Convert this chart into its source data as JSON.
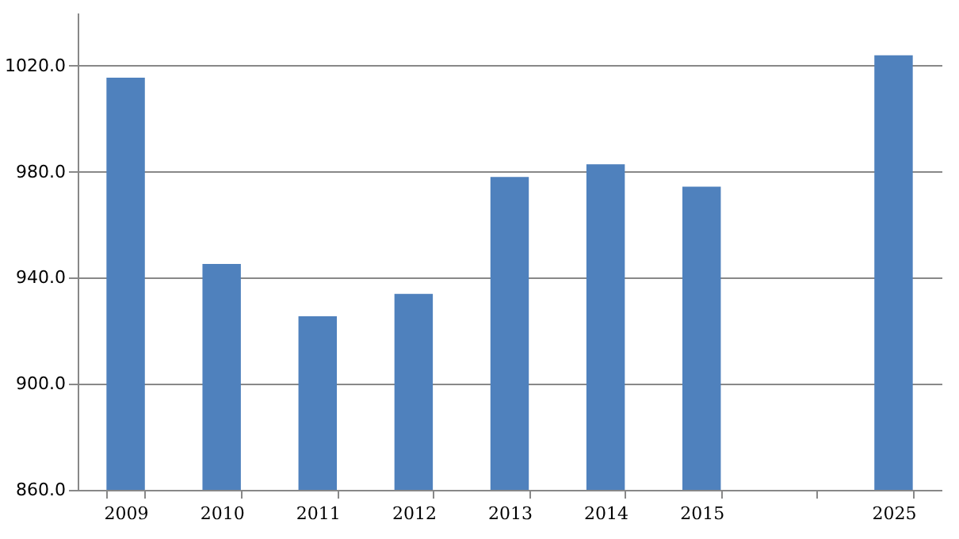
{
  "chart_data": {
    "type": "bar",
    "categories": [
      "2009",
      "2010",
      "2011",
      "2012",
      "2013",
      "2014",
      "2015",
      null,
      "2025"
    ],
    "values": [
      1015.5,
      945.2,
      925.5,
      933.9,
      978,
      982.8,
      974.4,
      null,
      1023.9
    ],
    "color": "#4f81bd",
    "ylim": [
      860,
      1040
    ],
    "yticks": [
      {
        "value": 860,
        "label": "860.0"
      },
      {
        "value": 900,
        "label": "900.0"
      },
      {
        "value": 940,
        "label": "940.0"
      },
      {
        "value": 980,
        "label": "980.0"
      },
      {
        "value": 1020,
        "label": "1020.0"
      }
    ],
    "grid": "y"
  }
}
